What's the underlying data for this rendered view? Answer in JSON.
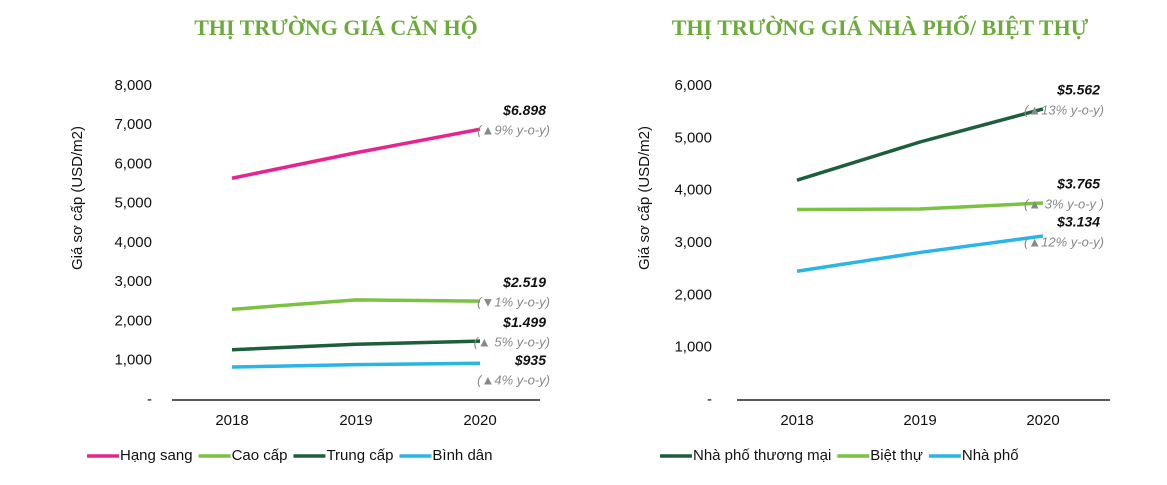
{
  "chart_data": [
    {
      "type": "line",
      "title": "THỊ TRƯỜNG GIÁ CĂN HỘ",
      "y_label": "Giá sơ cấp (USD/m2)",
      "categories": [
        "2018",
        "2019",
        "2020"
      ],
      "ylim": [
        0,
        8000
      ],
      "yticks": [
        {
          "value": 0,
          "label": "-"
        },
        {
          "value": 1000,
          "label": "1,000"
        },
        {
          "value": 2000,
          "label": "2,000"
        },
        {
          "value": 3000,
          "label": "3,000"
        },
        {
          "value": 4000,
          "label": "4,000"
        },
        {
          "value": 5000,
          "label": "5,000"
        },
        {
          "value": 6000,
          "label": "6,000"
        },
        {
          "value": 7000,
          "label": "7,000"
        },
        {
          "value": 8000,
          "label": "8,000"
        }
      ],
      "grid": false,
      "series": [
        {
          "name": "Hạng sang",
          "color": "#e6238f",
          "values": [
            5650,
            6300,
            6898
          ],
          "value_labels": [
            null,
            null,
            "$6.898"
          ],
          "annotation": "(▲9% y-o-y)"
        },
        {
          "name": "Cao cấp",
          "color": "#7cc242",
          "values": [
            2310,
            2550,
            2519
          ],
          "value_labels": [
            null,
            null,
            "$2.519"
          ],
          "annotation": "(▼1% y-o-y)"
        },
        {
          "name": "Trung cấp",
          "color": "#1d5e3c",
          "values": [
            1280,
            1420,
            1499
          ],
          "value_labels": [
            null,
            null,
            "$1.499"
          ],
          "annotation": "(▲ 5% y-o-y)"
        },
        {
          "name": "Bình dân",
          "color": "#29b5e5",
          "values": [
            840,
            900,
            935
          ],
          "value_labels": [
            null,
            null,
            "$935"
          ],
          "annotation": "(▲4% y-o-y)"
        }
      ]
    },
    {
      "type": "line",
      "title": "THỊ TRƯỜNG GIÁ NHÀ PHỐ/ BIỆT THỰ",
      "y_label": "Giá sơ cấp (USD/m2)",
      "categories": [
        "2018",
        "2019",
        "2020"
      ],
      "ylim": [
        0,
        6000
      ],
      "yticks": [
        {
          "value": 0,
          "label": "-"
        },
        {
          "value": 1000,
          "label": "1,000"
        },
        {
          "value": 2000,
          "label": "2,000"
        },
        {
          "value": 3000,
          "label": "3,000"
        },
        {
          "value": 4000,
          "label": "4,000"
        },
        {
          "value": 5000,
          "label": "5,000"
        },
        {
          "value": 6000,
          "label": "6,000"
        }
      ],
      "grid": false,
      "series": [
        {
          "name": "Nhà phố thương mại",
          "color": "#1d5e3c",
          "values": [
            4200,
            4930,
            5562
          ],
          "value_labels": [
            null,
            null,
            "$5.562"
          ],
          "annotation": "(▲13% y-o-y)"
        },
        {
          "name": "Biệt thự",
          "color": "#7cc242",
          "values": [
            3640,
            3650,
            3765
          ],
          "value_labels": [
            null,
            null,
            "$3.765"
          ],
          "annotation": "(▲ 3% y-o-y )"
        },
        {
          "name": "Nhà phố",
          "color": "#29b5e5",
          "values": [
            2460,
            2820,
            3134
          ],
          "value_labels": [
            null,
            null,
            "$3.134"
          ],
          "annotation": "(▲12% y-o-y)"
        }
      ]
    }
  ]
}
